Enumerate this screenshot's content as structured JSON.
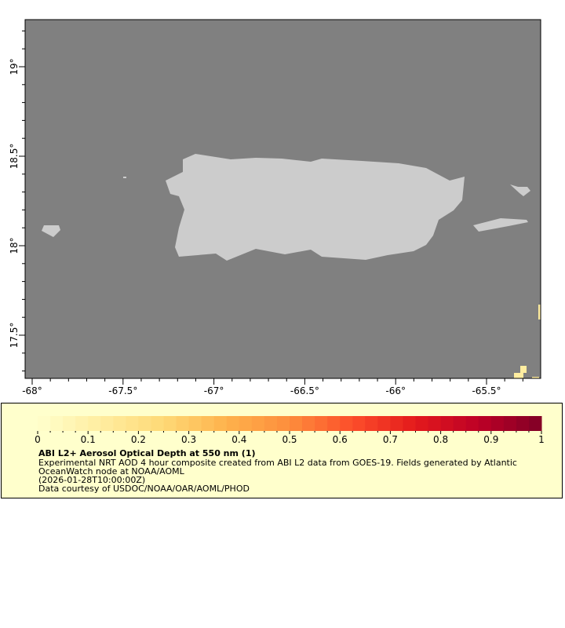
{
  "map": {
    "lon_ticks": [
      "-68°",
      "-67.5°",
      "-67°",
      "-66.5°",
      "-66°",
      "-65.5°"
    ],
    "lat_ticks": [
      "19°",
      "18.5°",
      "18°",
      "17.5°"
    ],
    "lon_range": [
      -68.05,
      -65.25
    ],
    "lat_range": [
      17.25,
      19.25
    ],
    "ocean_color": "#808080",
    "land_color": "#cccccc"
  },
  "colorbar": {
    "min": 0,
    "max": 1,
    "tick_labels": [
      "0",
      "0.1",
      "0.2",
      "0.3",
      "0.4",
      "0.5",
      "0.6",
      "0.7",
      "0.8",
      "0.9",
      "1"
    ],
    "palette": [
      "#ffffcc",
      "#ffeda0",
      "#fed976",
      "#feb24c",
      "#fd8d3c",
      "#fc4e2a",
      "#e31a1c",
      "#bd0026",
      "#800026"
    ]
  },
  "legend": {
    "title": "ABI L2+ Aerosol Optical Depth at 550 nm (1)",
    "line1": "Experimental NRT AOD 4 hour composite created from ABI L2 data from GOES-19. Fields generated by Atlantic",
    "line2": "OceanWatch node at NOAA/AOML",
    "line3": "(2026-01-28T10:00:00Z)",
    "line4": "Data courtesy of USDOC/NOAA/OAR/AOML/PHOD"
  }
}
